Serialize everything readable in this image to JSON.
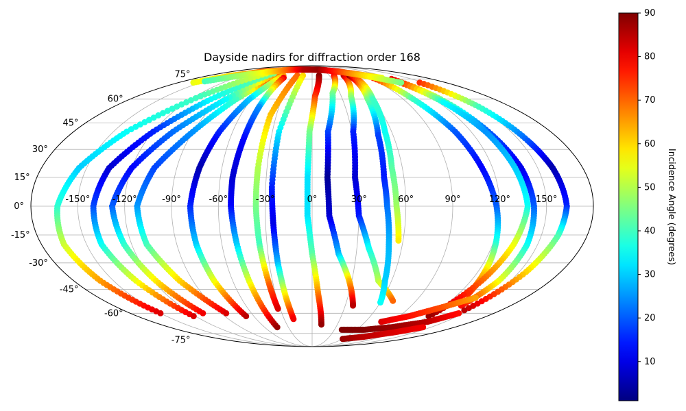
{
  "chart_data": {
    "type": "scatter",
    "projection": "mollweide",
    "title": "Dayside nadirs for diffraction order 168",
    "grid": true,
    "xlabel": "",
    "ylabel": "",
    "lon_ticks": [
      -150,
      -120,
      -90,
      -60,
      -30,
      0,
      30,
      60,
      90,
      120,
      150
    ],
    "lon_tick_labels": [
      "-150°",
      "-120°",
      "-90°",
      "-60°",
      "-30°",
      "0°",
      "30°",
      "60°",
      "90°",
      "120°",
      "150°"
    ],
    "lat_ticks": [
      -75,
      -60,
      -45,
      -30,
      -15,
      0,
      15,
      30,
      45,
      60,
      75
    ],
    "lat_tick_labels": [
      "-75°",
      "-60°",
      "-45°",
      "-30°",
      "-15°",
      "0°",
      "15°",
      "30°",
      "45°",
      "60°",
      "75°"
    ],
    "colormap": "jet",
    "colorbar": {
      "label": "Incidence Angle (degrees)",
      "range": [
        1,
        90
      ],
      "ticks": [
        10,
        20,
        30,
        40,
        50,
        60,
        70,
        80,
        90
      ],
      "tick_labels": [
        "10",
        "20",
        "30",
        "40",
        "50",
        "60",
        "70",
        "80",
        "90"
      ]
    },
    "series": [
      {
        "points": [
          [
            -26,
            78,
            70
          ],
          [
            -35,
            50,
            62
          ],
          [
            -36,
            20,
            50
          ],
          [
            -36,
            0,
            45
          ],
          [
            -35,
            -20,
            40
          ],
          [
            -33,
            -42,
            70
          ],
          [
            -32,
            -57,
            82
          ]
        ]
      },
      {
        "points": [
          [
            -16,
            78,
            60
          ],
          [
            -25,
            40,
            33
          ],
          [
            -26,
            10,
            15
          ],
          [
            -25,
            -10,
            10
          ],
          [
            -24,
            -30,
            28
          ],
          [
            -22,
            -50,
            60
          ],
          [
            -20,
            -64,
            80
          ]
        ]
      },
      {
        "points": [
          [
            12,
            78,
            90
          ],
          [
            3,
            62,
            75
          ],
          [
            -2,
            40,
            45
          ],
          [
            -3,
            15,
            32
          ],
          [
            -3,
            -5,
            32
          ],
          [
            0,
            -25,
            42
          ],
          [
            5,
            -48,
            68
          ],
          [
            11,
            -68,
            88
          ]
        ]
      },
      {
        "points": [
          [
            38,
            78,
            80
          ],
          [
            22,
            64,
            45
          ],
          [
            12,
            40,
            18
          ],
          [
            10,
            15,
            3
          ],
          [
            11,
            -5,
            8
          ],
          [
            18,
            -25,
            28
          ],
          [
            28,
            -40,
            62
          ],
          [
            37,
            -55,
            85
          ]
        ]
      },
      {
        "points": [
          [
            55,
            78,
            85
          ],
          [
            40,
            62,
            48
          ],
          [
            31,
            40,
            15
          ],
          [
            28,
            15,
            8
          ],
          [
            30,
            -5,
            14
          ],
          [
            38,
            -22,
            35
          ],
          [
            50,
            -40,
            50
          ],
          [
            70,
            -52,
            70
          ]
        ]
      },
      {
        "points": [
          [
            65,
            78,
            88
          ],
          [
            55,
            60,
            45
          ],
          [
            49,
            38,
            18
          ],
          [
            47,
            15,
            14
          ],
          [
            48,
            0,
            22
          ],
          [
            51,
            -20,
            28
          ],
          [
            55,
            -40,
            30
          ],
          [
            60,
            -53,
            35
          ]
        ]
      },
      {
        "points": [
          [
            70,
            78,
            80
          ],
          [
            60,
            60,
            40
          ],
          [
            55,
            40,
            35
          ],
          [
            53,
            20,
            42
          ],
          [
            54,
            0,
            48
          ],
          [
            57,
            -18,
            58
          ]
        ]
      },
      {
        "points": [
          [
            95,
            78,
            82
          ],
          [
            100,
            60,
            40
          ],
          [
            108,
            40,
            20
          ],
          [
            113,
            20,
            12
          ],
          [
            118,
            0,
            20
          ],
          [
            122,
            -20,
            38
          ],
          [
            125,
            -35,
            60
          ],
          [
            128,
            -48,
            75
          ]
        ]
      },
      {
        "points": [
          [
            120,
            75,
            80
          ],
          [
            127,
            60,
            45
          ],
          [
            133,
            40,
            20
          ],
          [
            139,
            20,
            10
          ],
          [
            142,
            0,
            20
          ],
          [
            143,
            -20,
            35
          ],
          [
            141,
            -40,
            55
          ],
          [
            135,
            -55,
            78
          ]
        ]
      },
      {
        "points": [
          [
            145,
            72,
            75
          ],
          [
            151,
            55,
            40
          ],
          [
            156,
            35,
            20
          ],
          [
            160,
            20,
            5
          ],
          [
            163,
            0,
            15
          ],
          [
            161,
            -15,
            40
          ],
          [
            155,
            -35,
            60
          ],
          [
            145,
            -58,
            85
          ]
        ]
      },
      {
        "points": [
          [
            118,
            74,
            82
          ],
          [
            125,
            58,
            35
          ],
          [
            131,
            40,
            25
          ],
          [
            135,
            20,
            30
          ],
          [
            138,
            0,
            35
          ],
          [
            134,
            -20,
            55
          ],
          [
            128,
            -40,
            70
          ],
          [
            120,
            -62,
            88
          ]
        ]
      },
      {
        "points": [
          [
            -58,
            78,
            85
          ],
          [
            -75,
            60,
            40
          ],
          [
            -90,
            40,
            25
          ],
          [
            -105,
            20,
            18
          ],
          [
            -112,
            0,
            25
          ],
          [
            -110,
            -20,
            40
          ],
          [
            -100,
            -40,
            60
          ],
          [
            -85,
            -60,
            82
          ]
        ]
      },
      {
        "points": [
          [
            -65,
            80,
            70
          ],
          [
            -85,
            60,
            35
          ],
          [
            -105,
            40,
            22
          ],
          [
            -120,
            20,
            12
          ],
          [
            -128,
            0,
            20
          ],
          [
            -125,
            -20,
            38
          ],
          [
            -118,
            -40,
            58
          ],
          [
            -108,
            -60,
            80
          ]
        ]
      },
      {
        "points": [
          [
            -75,
            80,
            45
          ],
          [
            -100,
            60,
            35
          ],
          [
            -120,
            40,
            15
          ],
          [
            -135,
            20,
            8
          ],
          [
            -140,
            0,
            18
          ],
          [
            -140,
            -20,
            35
          ],
          [
            -133,
            -40,
            55
          ],
          [
            -122,
            -62,
            82
          ]
        ]
      },
      {
        "points": [
          [
            -90,
            80,
            55
          ],
          [
            -115,
            62,
            40
          ],
          [
            -140,
            40,
            35
          ],
          [
            -155,
            20,
            30
          ],
          [
            -163,
            0,
            38
          ],
          [
            -165,
            -20,
            52
          ],
          [
            -160,
            -40,
            65
          ],
          [
            -150,
            -60,
            82
          ]
        ]
      },
      {
        "points": [
          [
            -50,
            78,
            65
          ],
          [
            -62,
            60,
            30
          ],
          [
            -70,
            40,
            15
          ],
          [
            -75,
            20,
            5
          ],
          [
            -78,
            0,
            15
          ],
          [
            -77,
            -20,
            30
          ],
          [
            -74,
            -40,
            55
          ],
          [
            -68,
            -62,
            85
          ]
        ]
      },
      {
        "points": [
          [
            -45,
            76,
            80
          ],
          [
            -48,
            55,
            25
          ],
          [
            -50,
            35,
            12
          ],
          [
            -52,
            15,
            8
          ],
          [
            -52,
            0,
            12
          ],
          [
            -50,
            -20,
            30
          ],
          [
            -47,
            -45,
            60
          ],
          [
            -44,
            -70,
            88
          ]
        ]
      },
      {
        "points": [
          [
            -160,
            72,
            55
          ],
          [
            -140,
            78,
            60
          ],
          [
            -110,
            82,
            70
          ],
          [
            -80,
            83,
            75
          ],
          [
            -40,
            84,
            80
          ],
          [
            0,
            84,
            82
          ],
          [
            40,
            83,
            80
          ],
          [
            80,
            80,
            70
          ],
          [
            110,
            76,
            55
          ]
        ]
      },
      {
        "points": [
          [
            -150,
            73,
            40
          ],
          [
            -120,
            79,
            50
          ],
          [
            -90,
            82,
            60
          ],
          [
            -60,
            84,
            72
          ],
          [
            -20,
            84,
            85
          ],
          [
            20,
            84,
            88
          ],
          [
            60,
            82,
            75
          ],
          [
            90,
            78,
            60
          ],
          [
            120,
            72,
            45
          ]
        ]
      },
      {
        "points": [
          [
            40,
            -72,
            90
          ],
          [
            70,
            -72,
            90
          ],
          [
            100,
            -70,
            88
          ],
          [
            130,
            -66,
            85
          ],
          [
            145,
            -60,
            78
          ]
        ]
      },
      {
        "points": [
          [
            60,
            -80,
            88
          ],
          [
            90,
            -78,
            85
          ],
          [
            120,
            -74,
            82
          ],
          [
            140,
            -70,
            80
          ]
        ]
      },
      {
        "points": [
          [
            78,
            -66,
            82
          ],
          [
            100,
            -62,
            78
          ],
          [
            120,
            -56,
            72
          ],
          [
            138,
            -50,
            65
          ]
        ]
      }
    ]
  }
}
